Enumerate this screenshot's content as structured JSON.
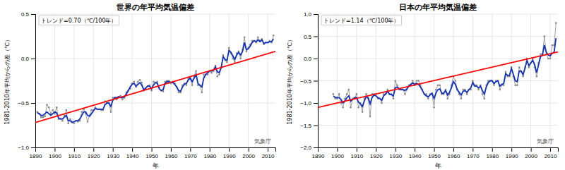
{
  "chart_data": [
    {
      "type": "line",
      "title": "世界の年平均気温偏差",
      "x_label": "年",
      "y_label": "1981-2010年平均からの差（℃）",
      "annotations": [
        "トレンド=0.70（℃/100年）",
        "気象庁"
      ],
      "x": [
        1891,
        1892,
        1893,
        1894,
        1895,
        1896,
        1897,
        1898,
        1899,
        1900,
        1901,
        1902,
        1903,
        1904,
        1905,
        1906,
        1907,
        1908,
        1909,
        1910,
        1911,
        1912,
        1913,
        1914,
        1915,
        1916,
        1917,
        1918,
        1919,
        1920,
        1921,
        1922,
        1923,
        1924,
        1925,
        1926,
        1927,
        1928,
        1929,
        1930,
        1931,
        1932,
        1933,
        1934,
        1935,
        1936,
        1937,
        1938,
        1939,
        1940,
        1941,
        1942,
        1943,
        1944,
        1945,
        1946,
        1947,
        1948,
        1949,
        1950,
        1951,
        1952,
        1953,
        1954,
        1955,
        1956,
        1957,
        1958,
        1959,
        1960,
        1961,
        1962,
        1963,
        1964,
        1965,
        1966,
        1967,
        1968,
        1969,
        1970,
        1971,
        1972,
        1973,
        1974,
        1975,
        1976,
        1977,
        1978,
        1979,
        1980,
        1981,
        1982,
        1983,
        1984,
        1985,
        1986,
        1987,
        1988,
        1989,
        1990,
        1991,
        1992,
        1993,
        1994,
        1995,
        1996,
        1997,
        1998,
        1999,
        2000,
        2001,
        2002,
        2003,
        2004,
        2005,
        2006,
        2007,
        2008,
        2009,
        2010,
        2011,
        2012,
        2013
      ],
      "series": [
        {
          "color": "#888888",
          "marker": "circle",
          "values": [
            -0.6,
            -0.62,
            -0.66,
            -0.66,
            -0.65,
            -0.52,
            -0.55,
            -0.62,
            -0.58,
            -0.62,
            -0.55,
            -0.68,
            -0.68,
            -0.7,
            -0.64,
            -0.58,
            -0.73,
            -0.68,
            -0.71,
            -0.73,
            -0.7,
            -0.71,
            -0.7,
            -0.6,
            -0.57,
            -0.62,
            -0.71,
            -0.64,
            -0.58,
            -0.58,
            -0.55,
            -0.57,
            -0.57,
            -0.58,
            -0.58,
            -0.48,
            -0.5,
            -0.5,
            -0.6,
            -0.44,
            -0.44,
            -0.46,
            -0.43,
            -0.42,
            -0.46,
            -0.44,
            -0.38,
            -0.36,
            -0.34,
            -0.28,
            -0.26,
            -0.32,
            -0.26,
            -0.24,
            -0.27,
            -0.36,
            -0.34,
            -0.31,
            -0.3,
            -0.36,
            -0.26,
            -0.27,
            -0.26,
            -0.33,
            -0.36,
            -0.37,
            -0.26,
            -0.25,
            -0.25,
            -0.28,
            -0.26,
            -0.28,
            -0.32,
            -0.38,
            -0.38,
            -0.3,
            -0.28,
            -0.3,
            -0.22,
            -0.22,
            -0.3,
            -0.2,
            -0.14,
            -0.3,
            -0.3,
            -0.38,
            -0.18,
            -0.18,
            -0.18,
            -0.14,
            -0.16,
            -0.14,
            -0.08,
            -0.2,
            -0.18,
            -0.1,
            0.04,
            -0.02,
            -0.04,
            0.12,
            0.06,
            0.0,
            -0.04,
            0.06,
            0.08,
            0.0,
            0.1,
            0.24,
            0.08,
            0.12,
            0.16,
            0.2,
            0.2,
            0.18,
            0.24,
            0.2,
            0.22,
            0.16,
            0.18,
            0.18,
            0.2,
            0.18,
            0.26
          ]
        },
        {
          "color": "#1030c0",
          "values": [
            -0.61,
            -0.62,
            -0.64,
            -0.64,
            -0.62,
            -0.6,
            -0.62,
            -0.64,
            -0.62,
            -0.6,
            -0.61,
            -0.67,
            -0.68,
            -0.68,
            -0.66,
            -0.64,
            -0.7,
            -0.7,
            -0.72,
            -0.71,
            -0.7,
            -0.7,
            -0.68,
            -0.64,
            -0.6,
            -0.6,
            -0.64,
            -0.65,
            -0.62,
            -0.59,
            -0.56,
            -0.57,
            -0.57,
            -0.57,
            -0.57,
            -0.52,
            -0.5,
            -0.5,
            -0.54,
            -0.47,
            -0.44,
            -0.44,
            -0.43,
            -0.44,
            -0.44,
            -0.43,
            -0.4,
            -0.36,
            -0.32,
            -0.29,
            -0.28,
            -0.31,
            -0.29,
            -0.27,
            -0.3,
            -0.35,
            -0.33,
            -0.31,
            -0.31,
            -0.34,
            -0.3,
            -0.27,
            -0.28,
            -0.34,
            -0.36,
            -0.35,
            -0.28,
            -0.26,
            -0.26,
            -0.27,
            -0.27,
            -0.29,
            -0.32,
            -0.36,
            -0.37,
            -0.32,
            -0.29,
            -0.28,
            -0.24,
            -0.22,
            -0.26,
            -0.22,
            -0.18,
            -0.28,
            -0.3,
            -0.32,
            -0.22,
            -0.18,
            -0.16,
            -0.14,
            -0.14,
            -0.13,
            -0.09,
            -0.15,
            -0.16,
            -0.1,
            0.02,
            -0.01,
            -0.02,
            0.09,
            0.07,
            0.03,
            -0.01,
            0.04,
            0.07,
            0.04,
            0.08,
            0.18,
            0.1,
            0.11,
            0.14,
            0.18,
            0.2,
            0.19,
            0.21,
            0.19,
            0.21,
            0.17,
            0.18,
            0.18,
            0.19,
            0.19,
            0.22
          ]
        },
        {
          "color": "red",
          "x": [
            1890,
            2014
          ],
          "values": [
            -0.72,
            0.08
          ]
        }
      ],
      "xlim": [
        1890,
        2014
      ],
      "xticks": [
        1890,
        1900,
        1910,
        1920,
        1930,
        1940,
        1950,
        1960,
        1970,
        1980,
        1990,
        2000,
        2010
      ],
      "ylim": [
        -1.0,
        0.5
      ],
      "yticks": [
        {
          "value": -1.0,
          "label": "−1.0"
        },
        {
          "value": -0.5,
          "label": "−0.5"
        },
        {
          "value": 0.0,
          "label": "0.0"
        },
        0.5
      ],
      "grid": true
    },
    {
      "type": "line",
      "title": "日本の年平均気温偏差",
      "x_label": "年",
      "y_label": "1981-2010年平均からの差（℃）",
      "annotations": [
        "トレンド=1.14（℃/100年）",
        "気象庁"
      ],
      "x": [
        1898,
        1899,
        1900,
        1901,
        1902,
        1903,
        1904,
        1905,
        1906,
        1907,
        1908,
        1909,
        1910,
        1911,
        1912,
        1913,
        1914,
        1915,
        1916,
        1917,
        1918,
        1919,
        1920,
        1921,
        1922,
        1923,
        1924,
        1925,
        1926,
        1927,
        1928,
        1929,
        1930,
        1931,
        1932,
        1933,
        1934,
        1935,
        1936,
        1937,
        1938,
        1939,
        1940,
        1941,
        1942,
        1943,
        1944,
        1945,
        1946,
        1947,
        1948,
        1949,
        1950,
        1951,
        1952,
        1953,
        1954,
        1955,
        1956,
        1957,
        1958,
        1959,
        1960,
        1961,
        1962,
        1963,
        1964,
        1965,
        1966,
        1967,
        1968,
        1969,
        1970,
        1971,
        1972,
        1973,
        1974,
        1975,
        1976,
        1977,
        1978,
        1979,
        1980,
        1981,
        1982,
        1983,
        1984,
        1985,
        1986,
        1987,
        1988,
        1989,
        1990,
        1991,
        1992,
        1993,
        1994,
        1995,
        1996,
        1997,
        1998,
        1999,
        2000,
        2001,
        2002,
        2003,
        2004,
        2005,
        2006,
        2007,
        2008,
        2009,
        2010,
        2011,
        2012,
        2013
      ],
      "series": [
        {
          "color": "#888888",
          "marker": "circle",
          "values": [
            -0.8,
            -0.9,
            -0.9,
            -0.8,
            -1.0,
            -1.1,
            -0.9,
            -0.8,
            -0.7,
            -1.1,
            -0.9,
            -0.9,
            -0.8,
            -1.1,
            -1.0,
            -1.2,
            -0.9,
            -0.8,
            -0.9,
            -1.3,
            -0.8,
            -0.8,
            -0.8,
            -0.9,
            -0.9,
            -1.0,
            -0.8,
            -0.8,
            -0.7,
            -0.8,
            -0.8,
            -0.9,
            -0.5,
            -0.6,
            -0.7,
            -0.7,
            -0.7,
            -0.8,
            -0.7,
            -0.6,
            -0.6,
            -0.5,
            -0.6,
            -0.5,
            -0.5,
            -0.6,
            -0.7,
            -0.8,
            -0.8,
            -0.9,
            -0.8,
            -0.8,
            -1.1,
            -0.7,
            -0.6,
            -0.6,
            -0.8,
            -0.8,
            -0.7,
            -0.9,
            -0.8,
            -0.6,
            -0.4,
            -0.5,
            -0.7,
            -0.8,
            -0.9,
            -0.7,
            -0.7,
            -0.8,
            -0.7,
            -0.7,
            -0.5,
            -0.6,
            -0.6,
            -0.7,
            -0.6,
            -0.8,
            -0.9,
            -0.6,
            -0.5,
            -0.5,
            -0.5,
            -0.6,
            -0.5,
            -0.5,
            -0.7,
            -0.6,
            -0.6,
            -0.3,
            -0.4,
            -0.4,
            -0.2,
            -0.4,
            -0.6,
            -0.6,
            -0.2,
            -0.3,
            -0.4,
            -0.2,
            0.0,
            -0.2,
            -0.1,
            0.0,
            -0.2,
            -0.4,
            -0.1,
            0.1,
            0.1,
            0.5,
            0.1,
            0.0,
            0.0,
            0.3,
            0.3,
            0.8
          ]
        },
        {
          "color": "#1030c0",
          "values": [
            -0.85,
            -0.87,
            -0.88,
            -0.88,
            -0.92,
            -1.0,
            -0.96,
            -0.88,
            -0.84,
            -0.96,
            -0.92,
            -0.88,
            -0.88,
            -0.98,
            -1.02,
            -1.08,
            -0.96,
            -0.86,
            -0.88,
            -1.02,
            -0.88,
            -0.82,
            -0.84,
            -0.88,
            -0.9,
            -0.94,
            -0.84,
            -0.8,
            -0.74,
            -0.8,
            -0.81,
            -0.84,
            -0.66,
            -0.64,
            -0.68,
            -0.7,
            -0.7,
            -0.72,
            -0.68,
            -0.62,
            -0.58,
            -0.55,
            -0.58,
            -0.56,
            -0.58,
            -0.64,
            -0.72,
            -0.8,
            -0.84,
            -0.86,
            -0.82,
            -0.78,
            -0.9,
            -0.78,
            -0.7,
            -0.68,
            -0.78,
            -0.78,
            -0.72,
            -0.82,
            -0.76,
            -0.66,
            -0.52,
            -0.58,
            -0.7,
            -0.76,
            -0.82,
            -0.74,
            -0.72,
            -0.76,
            -0.7,
            -0.66,
            -0.54,
            -0.62,
            -0.62,
            -0.66,
            -0.62,
            -0.72,
            -0.8,
            -0.64,
            -0.54,
            -0.5,
            -0.5,
            -0.56,
            -0.52,
            -0.5,
            -0.62,
            -0.58,
            -0.56,
            -0.34,
            -0.38,
            -0.38,
            -0.22,
            -0.36,
            -0.5,
            -0.52,
            -0.28,
            -0.28,
            -0.36,
            -0.22,
            -0.04,
            -0.16,
            -0.1,
            -0.04,
            -0.14,
            -0.32,
            -0.14,
            0.04,
            0.08,
            0.3,
            0.14,
            0.08,
            0.06,
            0.12,
            0.14,
            0.46
          ]
        },
        {
          "color": "red",
          "x": [
            1890,
            2014
          ],
          "values": [
            -1.1,
            0.15
          ]
        }
      ],
      "xlim": [
        1890,
        2014
      ],
      "xticks": [
        1890,
        1900,
        1910,
        1920,
        1930,
        1940,
        1950,
        1960,
        1970,
        1980,
        1990,
        2000,
        2010
      ],
      "ylim": [
        -2.0,
        1.0
      ],
      "yticks": [
        {
          "value": -2.0,
          "label": "−2.0"
        },
        {
          "value": -1.5,
          "label": "−1.5"
        },
        {
          "value": -1.0,
          "label": "−1.0"
        },
        {
          "value": -0.5,
          "label": "−0.5"
        },
        {
          "value": 0.0,
          "label": "0.0"
        },
        0.5,
        {
          "value": 1.0,
          "label": "1.0"
        }
      ],
      "grid": true
    }
  ]
}
